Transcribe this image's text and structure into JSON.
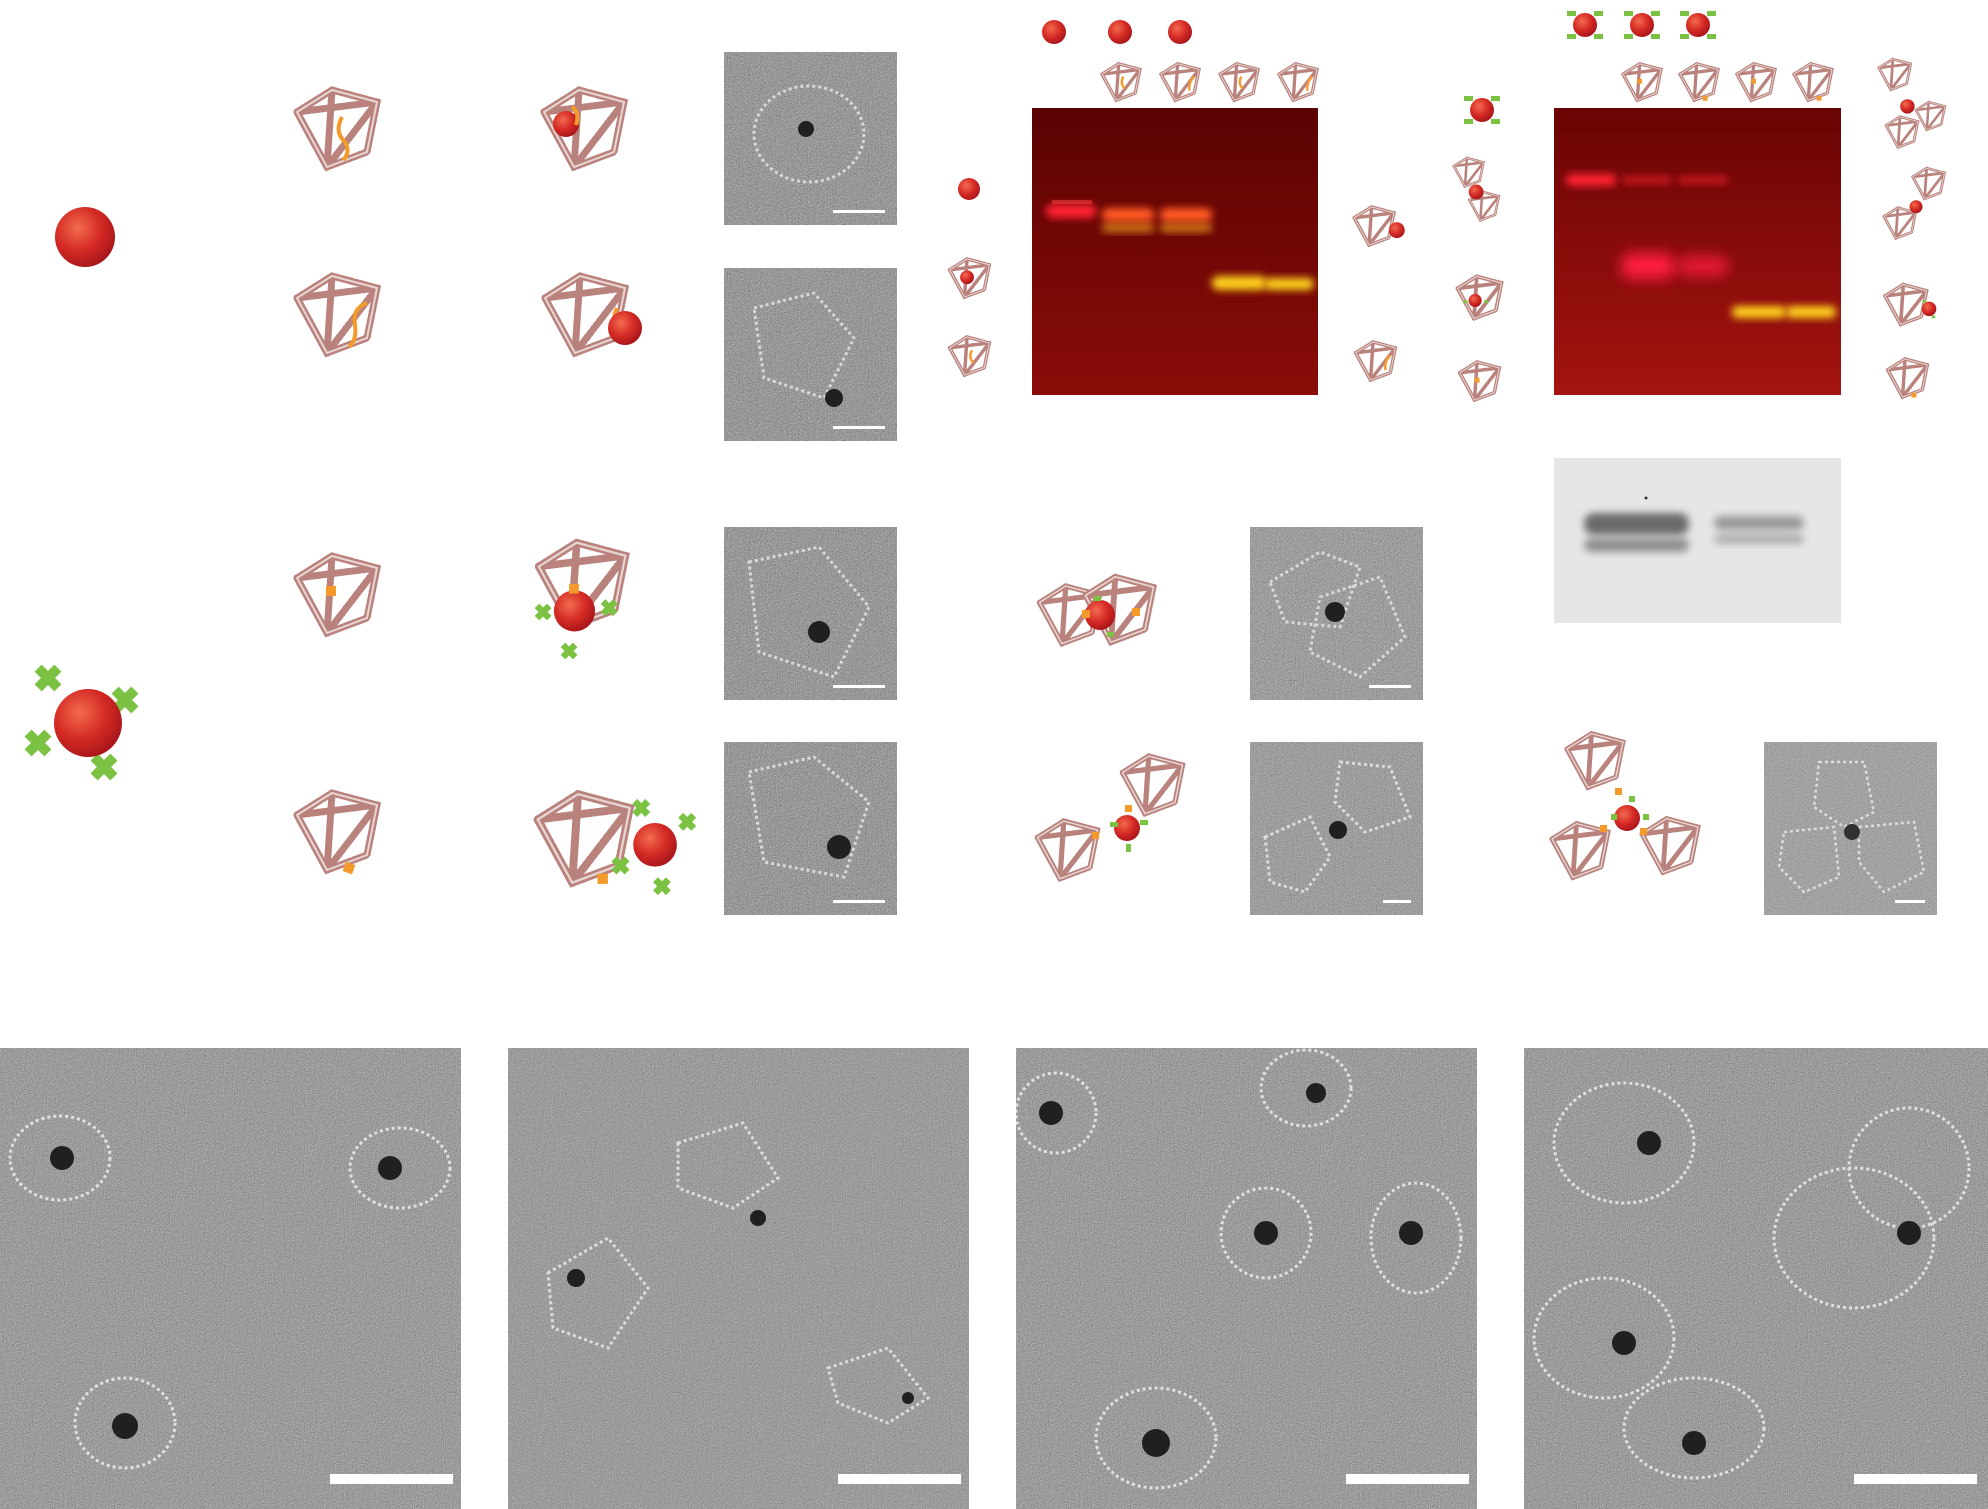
{
  "figure": {
    "panels": {
      "synthesis_rows": [
        "encapsulated",
        "surface-bound",
        "square-encapsulated",
        "square-surface-bound"
      ],
      "gels": [
        "gel-citrate-particles",
        "gel-functionalized-particles",
        "gel-grayscale"
      ],
      "assemblies": [
        "dimer-encapsulated",
        "dimer-linear",
        "trimer"
      ],
      "overview_micrographs": [
        "overview-1",
        "overview-2",
        "overview-3",
        "overview-4"
      ]
    },
    "colors": {
      "nanoparticle": "#d42a24",
      "ligand": "#7cc242",
      "anchor": "#f39a2b",
      "dna_frame": "#b9827c",
      "gel_background": "#7a0000",
      "gel_band_red": "#ff2a3a",
      "gel_band_yellow": "#ffd21a"
    },
    "icons": {
      "particle": "red-sphere-icon",
      "ligand_particle": "ligand-sphere-icon",
      "frame_with_strand": "dna-frame-strand-icon",
      "frame_with_anchor": "dna-frame-anchor-icon"
    }
  }
}
